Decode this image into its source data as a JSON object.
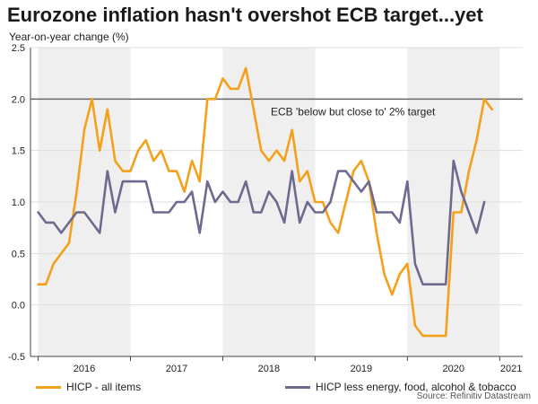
{
  "chart_data": {
    "type": "line",
    "title": "Eurozone inflation hasn't overshot ECB target...yet",
    "subtitle": "Year-on-year change (%)",
    "ylim": [
      -0.5,
      2.5
    ],
    "yticks": [
      "2.5",
      "2.0",
      "1.5",
      "1.0",
      "0.5",
      "0.0",
      "-0.5"
    ],
    "ytick_values": [
      2.5,
      2.0,
      1.5,
      1.0,
      0.5,
      0.0,
      -0.5
    ],
    "xlim": [
      "2015-12",
      "2021-04"
    ],
    "x_tick_labels": [
      {
        "label": "2016",
        "year": 2016
      },
      {
        "label": "2017",
        "year": 2017
      },
      {
        "label": "2018",
        "year": 2018
      },
      {
        "label": "2019",
        "year": 2019
      },
      {
        "label": "2020",
        "year": 2020
      },
      {
        "label": "2021",
        "year": 2021
      }
    ],
    "shaded_years": [
      2016,
      2018,
      2020
    ],
    "target": {
      "value": 2.0,
      "label": "ECB 'below but close to' 2% target"
    },
    "x": [
      "2016-01",
      "2016-02",
      "2016-03",
      "2016-04",
      "2016-05",
      "2016-06",
      "2016-07",
      "2016-08",
      "2016-09",
      "2016-10",
      "2016-11",
      "2016-12",
      "2017-01",
      "2017-02",
      "2017-03",
      "2017-04",
      "2017-05",
      "2017-06",
      "2017-07",
      "2017-08",
      "2017-09",
      "2017-10",
      "2017-11",
      "2017-12",
      "2018-01",
      "2018-02",
      "2018-03",
      "2018-04",
      "2018-05",
      "2018-06",
      "2018-07",
      "2018-08",
      "2018-09",
      "2018-10",
      "2018-11",
      "2018-12",
      "2019-01",
      "2019-02",
      "2019-03",
      "2019-04",
      "2019-05",
      "2019-06",
      "2019-07",
      "2019-08",
      "2019-09",
      "2019-10",
      "2019-11",
      "2019-12",
      "2020-01",
      "2020-02",
      "2020-03",
      "2020-04",
      "2020-05",
      "2020-06",
      "2020-07",
      "2020-08",
      "2020-09",
      "2020-10",
      "2020-11",
      "2020-12",
      "2021-01",
      "2021-02",
      "2021-03",
      "2021-04",
      "2021-05"
    ],
    "series": [
      {
        "name": "HICP - all items",
        "color": "#f5a01a",
        "values": [
          0.2,
          0.2,
          0.4,
          0.5,
          0.6,
          1.1,
          1.7,
          2.0,
          1.5,
          1.9,
          1.4,
          1.3,
          1.3,
          1.5,
          1.6,
          1.4,
          1.5,
          1.3,
          1.3,
          1.1,
          1.4,
          1.2,
          2.0,
          2.0,
          2.2,
          2.1,
          2.1,
          2.3,
          1.9,
          1.5,
          1.4,
          1.5,
          1.4,
          1.7,
          1.2,
          1.3,
          1.0,
          1.0,
          0.8,
          0.7,
          1.0,
          1.3,
          1.4,
          1.2,
          0.7,
          0.3,
          0.1,
          0.3,
          0.4,
          -0.2,
          -0.3,
          -0.3,
          -0.3,
          -0.3,
          0.9,
          0.9,
          1.3,
          1.6,
          2.0,
          1.9,
          null,
          null,
          null,
          null,
          null
        ]
      },
      {
        "name": "HICP less energy, food, alcohol & tobacco",
        "color": "#6e6a8e",
        "values": [
          0.9,
          0.8,
          0.8,
          0.7,
          0.8,
          0.9,
          0.9,
          0.8,
          0.7,
          1.3,
          0.9,
          1.2,
          1.2,
          1.2,
          1.2,
          0.9,
          0.9,
          0.9,
          1.0,
          1.0,
          1.1,
          0.7,
          1.2,
          1.0,
          1.1,
          1.0,
          1.0,
          1.2,
          0.9,
          0.9,
          1.1,
          1.0,
          0.8,
          1.3,
          0.8,
          1.0,
          0.9,
          0.9,
          1.0,
          1.3,
          1.3,
          1.2,
          1.1,
          1.2,
          0.9,
          0.9,
          0.9,
          0.8,
          1.2,
          0.4,
          0.2,
          0.2,
          0.2,
          0.2,
          1.4,
          1.1,
          0.9,
          0.7,
          1.0,
          null,
          null,
          null,
          null,
          null,
          null
        ]
      }
    ],
    "source": "Source: Refinitiv Datastream"
  }
}
